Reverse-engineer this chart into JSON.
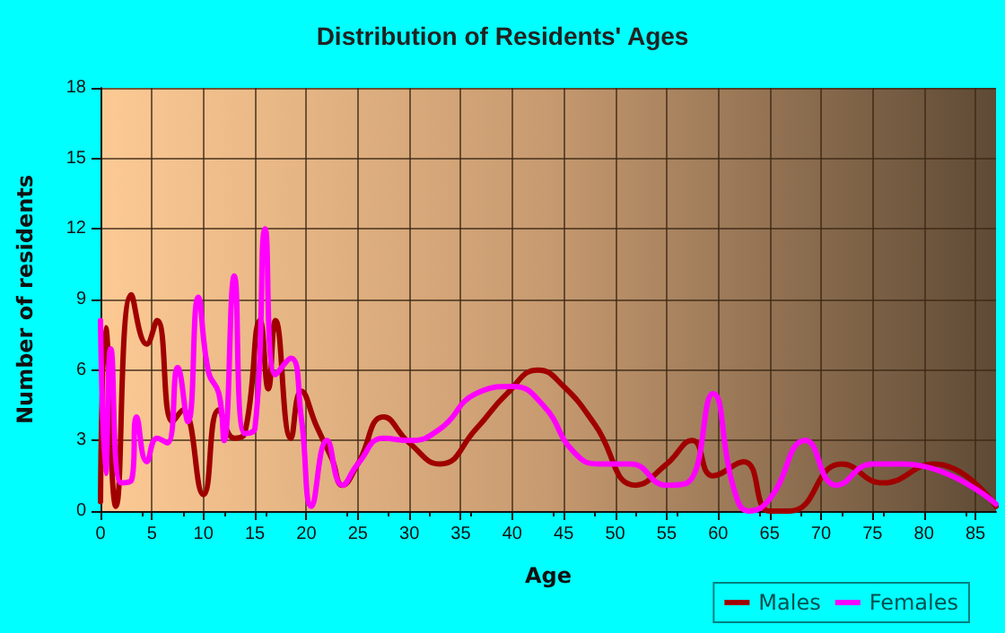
{
  "chart_data": {
    "type": "line",
    "title": "Distribution of Residents' Ages",
    "xlabel": "Age",
    "ylabel": "Number of residents",
    "xlim": [
      0,
      87
    ],
    "xticks": [
      0,
      5,
      10,
      15,
      20,
      25,
      30,
      35,
      40,
      45,
      50,
      55,
      60,
      65,
      70,
      75,
      80,
      85
    ],
    "ylim": [
      0,
      18
    ],
    "yticks": [
      0,
      3,
      6,
      9,
      12,
      15,
      18
    ],
    "grid": true,
    "legend": "bottom right",
    "marker": "none",
    "line_style": "solid",
    "series": [
      {
        "name": "Males",
        "color": "#a00000",
        "x": [
          0,
          0.5,
          1.5,
          3,
          4.5,
          5.5,
          7,
          8,
          10,
          11.5,
          13,
          14,
          15.5,
          16.3,
          17,
          18.5,
          19.5,
          21,
          22.5,
          23.5,
          25,
          27.5,
          30,
          33,
          36.5,
          39.5,
          42.5,
          45,
          48,
          52,
          55,
          57.5,
          59.5,
          62.5,
          65,
          67,
          72,
          76,
          81,
          87
        ],
        "values": [
          0.4,
          7.8,
          0.2,
          9.2,
          7.1,
          8.1,
          3.8,
          4.3,
          0.7,
          4.3,
          3.1,
          3.3,
          8.1,
          5.2,
          8.1,
          3.1,
          5.1,
          3.6,
          2.2,
          1.1,
          2,
          4,
          2.9,
          2,
          3.5,
          5,
          6,
          5.3,
          3.7,
          1.1,
          2,
          3,
          1.5,
          2.1,
          0,
          0,
          2,
          1.2,
          2,
          0.2
        ]
      },
      {
        "name": "Females",
        "color": "#ff00ff",
        "x": [
          0,
          0.5,
          1,
          2,
          3,
          3.5,
          4.5,
          5.5,
          6.5,
          7.5,
          8.5,
          9.5,
          10.5,
          11.5,
          12,
          13,
          14,
          15,
          16,
          17,
          18.5,
          19.5,
          20.5,
          22,
          23.5,
          25,
          27.5,
          30,
          33,
          36.5,
          40,
          43,
          46,
          48.5,
          51.5,
          55,
          57,
          59.5,
          61.5,
          63,
          65,
          68.5,
          71.5,
          75,
          78,
          87
        ],
        "values": [
          8.1,
          1.6,
          6.9,
          1.2,
          1.3,
          4,
          2.1,
          3.1,
          2.9,
          6.1,
          3.8,
          9.1,
          5.9,
          5,
          3,
          10,
          3.3,
          3.5,
          12,
          5.8,
          6.5,
          4,
          0.2,
          3,
          1.1,
          2,
          3.1,
          3,
          3.5,
          5,
          5.3,
          4.5,
          2.5,
          2,
          2,
          1.1,
          1.2,
          5,
          1,
          0,
          0.5,
          3,
          1.1,
          2,
          2,
          0.3
        ]
      }
    ]
  }
}
